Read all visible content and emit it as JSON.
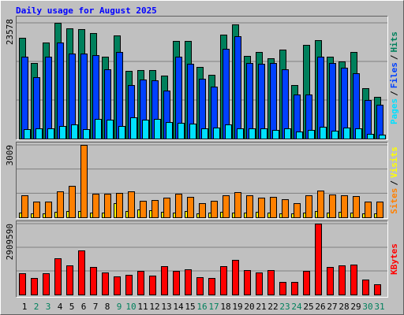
{
  "title": "Daily usage for August 2025",
  "legend_separator": "/",
  "chart_data": [
    {
      "type": "bar",
      "ylim": [
        0,
        23578
      ],
      "yticks": [
        23578
      ],
      "series": [
        {
          "name": "Hits",
          "color": "#00805c",
          "values": [
            20531,
            15398,
            19569,
            23578,
            22456,
            22296,
            21494,
            16682,
            21012,
            13794,
            13955,
            13955,
            12832,
            19890,
            19890,
            14596,
            12992,
            21173,
            23258,
            16842,
            17644,
            16361,
            18125,
            10907,
            19088,
            20050,
            16682,
            15719,
            17644,
            10266,
            8501
          ]
        },
        {
          "name": "Files",
          "color": "#0040ff",
          "values": [
            16682,
            12511,
            16682,
            19569,
            17323,
            17323,
            17002,
            14115,
            17644,
            10907,
            12030,
            11870,
            9784,
            16682,
            15238,
            12190,
            10586,
            18286,
            20852,
            15398,
            15238,
            15398,
            14115,
            8982,
            8982,
            16682,
            15398,
            14436,
            13313,
            7860,
            6897
          ]
        },
        {
          "name": "Pages",
          "color": "#00e0ff",
          "values": [
            1925,
            2085,
            2085,
            2566,
            2887,
            1925,
            4010,
            3850,
            2566,
            4331,
            3850,
            4010,
            3368,
            3208,
            3048,
            2085,
            2246,
            2887,
            2085,
            2085,
            2085,
            1764,
            2085,
            1444,
            1764,
            2406,
            1604,
            2246,
            2085,
            962,
            802
          ]
        }
      ]
    },
    {
      "type": "bar",
      "ylim": [
        0,
        3009
      ],
      "yticks": [
        3009
      ],
      "series": [
        {
          "name": "Visits",
          "color": "#ffff00",
          "values": [
            196,
            164,
            164,
            229,
            262,
            262,
            196,
            196,
            589,
            262,
            327,
            294,
            229,
            196,
            262,
            164,
            196,
            229,
            196,
            196,
            229,
            196,
            164,
            164,
            196,
            262,
            196,
            229,
            196,
            164,
            164
          ]
        },
        {
          "name": "Sites",
          "color": "#ff8000",
          "values": [
            916,
            654,
            654,
            1079,
            1308,
            3009,
            981,
            981,
            1014,
            1079,
            687,
            719,
            818,
            981,
            850,
            589,
            687,
            916,
            1047,
            916,
            818,
            850,
            752,
            589,
            916,
            1112,
            948,
            916,
            883,
            654,
            654
          ]
        }
      ]
    },
    {
      "type": "bar",
      "ylim": [
        0,
        2909590
      ],
      "yticks": [
        2909590
      ],
      "categories": [
        "1",
        "2",
        "3",
        "4",
        "5",
        "6",
        "7",
        "8",
        "9",
        "10",
        "11",
        "12",
        "13",
        "14",
        "15",
        "16",
        "17",
        "18",
        "19",
        "20",
        "21",
        "22",
        "23",
        "24",
        "25",
        "26",
        "27",
        "28",
        "29",
        "30",
        "31"
      ],
      "category_colors": [
        "#000000",
        "#00805c",
        "#00805c",
        "#000000",
        "#000000",
        "#000000",
        "#000000",
        "#000000",
        "#00805c",
        "#00805c",
        "#000000",
        "#000000",
        "#000000",
        "#000000",
        "#000000",
        "#00805c",
        "#00805c",
        "#000000",
        "#000000",
        "#000000",
        "#000000",
        "#000000",
        "#00805c",
        "#00805c",
        "#000000",
        "#000000",
        "#000000",
        "#000000",
        "#000000",
        "#00805c",
        "#00805c"
      ],
      "series": [
        {
          "name": "KBytes",
          "color": "#ff0000",
          "values": [
            872883,
            678909,
            872883,
            1487134,
            1196173,
            1810419,
            1131515,
            905212,
            743567,
            808225,
            969870,
            775896,
            1163844,
            969870,
            1034528,
            711238,
            678909,
            1163844,
            1422476,
            1002199,
            905212,
            1002199,
            517264,
            517264,
            969870,
            2909590,
            1131515,
            1196173,
            1228502,
            614251,
            420277
          ]
        }
      ]
    }
  ]
}
